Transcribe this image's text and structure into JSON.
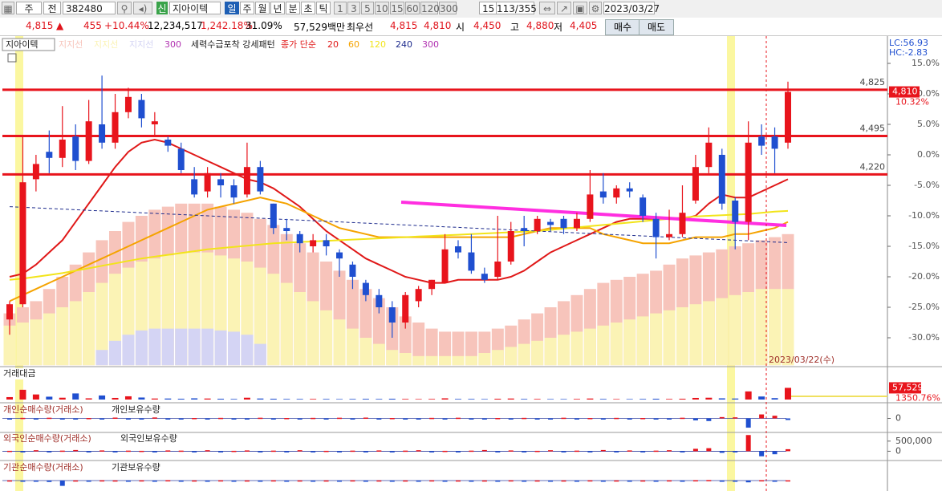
{
  "toolbar": {
    "market": "주",
    "range": "전",
    "code": "382480",
    "badge": "신",
    "name": "지아이텍",
    "periods": [
      "일",
      "주",
      "월",
      "년",
      "분",
      "초",
      "틱"
    ],
    "minutes": [
      "1",
      "3",
      "5",
      "10",
      "15",
      "60",
      "120",
      "300"
    ],
    "count": "15",
    "position": "113/355",
    "date": "2023/03/27"
  },
  "quote": {
    "price": "4,815",
    "arrow": "▲",
    "change": "455",
    "change_pct": "+10.44%",
    "volume": "12,234,517",
    "volume_ratio": "1,242.18%",
    "turnover": "31.09%",
    "amount": "57,529백만",
    "priority": "최우선",
    "ask": "4,815",
    "bid": "4,810",
    "open_label": "시",
    "open": "4,450",
    "high_label": "고",
    "high": "4,880",
    "low_label": "저",
    "low": "4,405",
    "buy": "매수",
    "sell": "매도"
  },
  "chart_data": [
    {
      "type": "candlestick",
      "stock_label": "지아이텍",
      "band_period": "300",
      "pattern_label": "세력수급포착 강세패턴",
      "ma_label": "종가 단순",
      "lc": "LC:56.93",
      "hc": "HC:-2.83",
      "date_note": "2023/03/22(수)",
      "ylim": [
        -34.5,
        18.5
      ],
      "yticks": [
        {
          "value": 15,
          "label": "15.0%"
        },
        {
          "value": 10,
          "label": "10.0%"
        },
        {
          "value": 5,
          "label": "5.0%"
        },
        {
          "value": 0,
          "label": "0.0%"
        },
        {
          "value": -5,
          "label": "-5.0%"
        },
        {
          "value": -10,
          "label": "-10.0%"
        },
        {
          "value": -15,
          "label": "-15.0%"
        },
        {
          "value": -20,
          "label": "-20.0%"
        },
        {
          "value": -25,
          "label": "-25.0%"
        },
        {
          "value": -30,
          "label": "-30.0%"
        }
      ],
      "hlines": [
        {
          "value": 10.67,
          "label": "4,825",
          "color": "#e8141c"
        },
        {
          "value": 3.1,
          "label": "4,495",
          "color": "#e8141c"
        },
        {
          "value": -3.21,
          "label": "4,220",
          "color": "#e8141c"
        }
      ],
      "current": {
        "value": 10.32,
        "label": "4,810",
        "pct_label": "10.32%"
      },
      "open": [
        -27,
        -24.5,
        -4,
        0.5,
        -0.5,
        3,
        -1,
        5,
        2,
        7,
        9,
        5,
        2.5,
        1,
        -4,
        -6,
        -4,
        -5,
        -6.5,
        -2,
        -8,
        -12,
        -13,
        -15,
        -14,
        -16,
        -18,
        -21,
        -23,
        -25,
        -27.5,
        -24,
        -22,
        -21,
        -15,
        -16,
        -19.5,
        -20,
        -17.5,
        -12,
        -12.5,
        -11,
        -10.5,
        -12,
        -10.5,
        -6,
        -7,
        -5.5,
        -7,
        -10.5,
        -13.5,
        -13,
        -7.5,
        -2,
        0,
        -7.5,
        -11,
        3,
        3,
        2
      ],
      "high": [
        -24,
        3,
        0,
        4,
        8,
        5,
        9,
        13,
        10,
        11,
        10,
        7,
        3,
        2,
        -2,
        -2,
        -3,
        -4,
        2,
        -1,
        -8,
        -10.5,
        -12.5,
        -13,
        -13,
        -15.5,
        -17.5,
        -20.5,
        -22,
        -24,
        -22.5,
        -21.5,
        -20.5,
        -13,
        -14,
        -13,
        -18.5,
        -10,
        -11,
        -10,
        -10,
        -10.5,
        -10,
        -9.5,
        -2.5,
        -3,
        -5,
        -4.5,
        -6.5,
        -9.5,
        -9,
        -5,
        0,
        4.5,
        1,
        -7,
        5.5,
        5,
        4.5,
        12
      ],
      "low": [
        -29.5,
        -25,
        -6,
        -3,
        -2,
        -2.5,
        -1.5,
        1,
        1,
        6,
        4.5,
        3,
        0.5,
        -3,
        -7,
        -7,
        -7,
        -8,
        -7,
        -6.5,
        -13,
        -14,
        -16,
        -16,
        -16.5,
        -20,
        -22,
        -24,
        -26,
        -30,
        -28.5,
        -25,
        -23,
        -21,
        -17,
        -19.5,
        -21,
        -20.5,
        -18,
        -15,
        -13,
        -12.5,
        -13,
        -12.5,
        -11,
        -8,
        -8,
        -7,
        -11,
        -17,
        -14,
        -13.5,
        -8,
        -3,
        -9,
        -15.5,
        -14,
        0,
        -3,
        1
      ],
      "close": [
        -24.5,
        -4.5,
        -1.5,
        -0.5,
        2.5,
        -1,
        5.5,
        2,
        7,
        9.5,
        6,
        5.5,
        1.5,
        -2.5,
        -6.5,
        -3,
        -5,
        -7,
        -2,
        -6,
        -12,
        -12.5,
        -14.5,
        -14,
        -15,
        -17,
        -20,
        -23,
        -25,
        -27.5,
        -23,
        -22,
        -20.5,
        -15.5,
        -16,
        -19,
        -20.5,
        -17.5,
        -12.5,
        -12.5,
        -10.5,
        -11.5,
        -12,
        -10.5,
        -6.5,
        -7,
        -5.5,
        -6,
        -10,
        -13.5,
        -13,
        -9.5,
        -2,
        2,
        -8,
        -11,
        2,
        1.5,
        1,
        10.32
      ],
      "up_color": "#e8141c",
      "down_color": "#1f4fd0",
      "bands": [
        {
          "name": "지지선",
          "color": "#f7c4bb",
          "values": [
            -26,
            -25,
            -24,
            -22,
            -20,
            -18,
            -16,
            -14,
            -12.5,
            -11,
            -10,
            -9,
            -8.5,
            -8,
            -8,
            -8,
            -8.5,
            -9,
            -9.5,
            -10.5,
            -11.5,
            -13,
            -14.5,
            -16,
            -17.5,
            -19,
            -20.5,
            -22,
            -23.5,
            -25,
            -26.5,
            -27.5,
            -28.5,
            -29,
            -29,
            -29,
            -29,
            -28.5,
            -28,
            -27,
            -26,
            -25,
            -24,
            -23,
            -22,
            -21,
            -20.5,
            -20,
            -19.5,
            -19,
            -18,
            -17,
            -16.5,
            -16,
            -15.5,
            -15,
            -14.5,
            -14,
            -13.5,
            -13
          ]
        },
        {
          "name": "지지선",
          "color": "#fbf3b5",
          "values": [
            -28,
            -27.5,
            -27,
            -26,
            -25,
            -24,
            -22.5,
            -21,
            -19.5,
            -18.5,
            -17.5,
            -17,
            -16.5,
            -16,
            -16,
            -16,
            -16.5,
            -17,
            -17.5,
            -18.5,
            -19.5,
            -21,
            -22.5,
            -24,
            -25.5,
            -27,
            -28.5,
            -30,
            -31,
            -32,
            -32.5,
            -33,
            -33,
            -33,
            -33,
            -33,
            -32.5,
            -32,
            -31.5,
            -31,
            -30.5,
            -30,
            -29.5,
            -29,
            -28.5,
            -28,
            -27.5,
            -27,
            -26.5,
            -26,
            -25.5,
            -25,
            -24.5,
            -24,
            -23.5,
            -23,
            -22.5,
            -22,
            -22,
            -22
          ]
        },
        {
          "name": "지지선",
          "color": "#d4d4f4",
          "values": [
            null,
            null,
            null,
            null,
            null,
            null,
            null,
            -32,
            -30.5,
            -29.5,
            -28.8,
            -28.5,
            -28.5,
            -28.5,
            -28.5,
            -28.5,
            -28.8,
            -29,
            -29.5,
            -31,
            null,
            null,
            null,
            null,
            null,
            null,
            null,
            null,
            null,
            null,
            null,
            null,
            null,
            null,
            null,
            null,
            null,
            null,
            null,
            null,
            null,
            null,
            null,
            null,
            null,
            null,
            null,
            null,
            null,
            null,
            null,
            null,
            null,
            null,
            null,
            null,
            null,
            null,
            null,
            null
          ]
        }
      ],
      "series": [
        {
          "name": "20",
          "color": "#e01818",
          "values": [
            -20,
            -19.5,
            -18,
            -16,
            -14,
            -11,
            -8,
            -5,
            -2,
            0.5,
            2,
            2.5,
            2,
            1,
            0,
            -1,
            -2,
            -3,
            -4,
            -4.5,
            -5.5,
            -7,
            -8.5,
            -10.5,
            -12.5,
            -14,
            -15.5,
            -17,
            -18,
            -19,
            -20,
            -20.5,
            -21,
            -21,
            -20.5,
            -20.5,
            -20.5,
            -20.5,
            -20,
            -19,
            -17.5,
            -16,
            -15,
            -14,
            -13,
            -12,
            -11,
            -10.5,
            -10.5,
            -10.5,
            -10.5,
            -10.5,
            -10,
            -8,
            -6.5,
            -7,
            -7,
            -6,
            -5,
            -4
          ]
        },
        {
          "name": "60",
          "color": "#f5a300",
          "values": [
            -24,
            -23,
            -22,
            -21,
            -20,
            -19,
            -18,
            -17,
            -16,
            -15,
            -14,
            -13,
            -12,
            -11,
            -10,
            -9,
            -8.5,
            -8,
            -7.5,
            -7,
            -7.5,
            -8,
            -9,
            -10,
            -11,
            -12,
            -12.5,
            -13,
            -13.5,
            -13.5,
            -13.5,
            -13.5,
            -13.5,
            -13.5,
            -13.5,
            -13.5,
            -13.5,
            -13.5,
            -13.5,
            -13,
            -12.5,
            -12,
            -12,
            -12,
            -12,
            -13,
            -13.5,
            -14,
            -14.5,
            -14.5,
            -14.5,
            -14,
            -13.5,
            -13.5,
            -13.5,
            -13,
            -13,
            -12.5,
            -12,
            -11
          ]
        },
        {
          "name": "120",
          "color": "#f2e41a",
          "values": [
            -20.5,
            -20.3,
            -20,
            -19.7,
            -19.4,
            -19,
            -18.6,
            -18.2,
            -17.8,
            -17.4,
            -17,
            -16.7,
            -16.4,
            -16.1,
            -15.8,
            -15.5,
            -15.3,
            -15.1,
            -14.9,
            -14.7,
            -14.5,
            -14.4,
            -14.3,
            -14.2,
            -14.1,
            -14,
            -13.9,
            -13.8,
            -13.7,
            -13.6,
            -13.5,
            -13.4,
            -13.3,
            -13.2,
            -13.1,
            -13,
            -12.9,
            -12.8,
            -12.7,
            -12.6,
            -12.5,
            -12.3,
            -12.1,
            -11.9,
            -11.7,
            -11.5,
            -11.3,
            -11.1,
            -10.9,
            -10.7,
            -10.5,
            -10.3,
            -10.1,
            -10,
            -9.9,
            -9.8,
            -9.7,
            -9.5,
            -9.3,
            -9.2
          ]
        },
        {
          "name": "240",
          "color": "#1c2a8c",
          "dashed": true,
          "values": [
            -8.5,
            -8.6,
            -8.7,
            -8.8,
            -8.9,
            -9,
            -9.1,
            -9.2,
            -9.3,
            -9.4,
            -9.5,
            -9.6,
            -9.7,
            -9.8,
            -9.9,
            -10,
            -10.1,
            -10.2,
            -10.3,
            -10.4,
            -10.5,
            -10.6,
            -10.7,
            -10.8,
            -10.9,
            -11,
            -11.1,
            -11.2,
            -11.3,
            -11.4,
            -11.5,
            -11.6,
            -11.7,
            -11.8,
            -11.9,
            -12,
            -12.1,
            -12.2,
            -12.3,
            -12.4,
            -12.5,
            -12.6,
            -12.7,
            -12.8,
            -12.9,
            -13,
            -13.1,
            -13.2,
            -13.3,
            -13.4,
            -13.5,
            -13.6,
            -13.7,
            -13.8,
            -13.9,
            -14,
            -14.1,
            -14.2,
            -14.3,
            -14.4
          ]
        },
        {
          "name": "300",
          "color": "#b030b0",
          "values": [
            null,
            null,
            null,
            null,
            null,
            null,
            null,
            null,
            null,
            null,
            null,
            null,
            null,
            null,
            null,
            null,
            null,
            null,
            null,
            null,
            null,
            null,
            null,
            null,
            null,
            null,
            null,
            null,
            null,
            null,
            null,
            null,
            null,
            null,
            null,
            null,
            null,
            null,
            null,
            null,
            null,
            null,
            null,
            null,
            null,
            null,
            null,
            null,
            null,
            null,
            null,
            null,
            null,
            null,
            null,
            null,
            null,
            null,
            null,
            null
          ]
        }
      ]
    },
    {
      "type": "volume",
      "title": "거래대금",
      "ylim": [
        0,
        150000
      ],
      "right_labels": [
        "57,529",
        "1350.76%"
      ],
      "values": [
        12000,
        48000,
        25000,
        14000,
        9000,
        30000,
        6000,
        20000,
        8000,
        16000,
        10000,
        5000,
        5000,
        4000,
        6000,
        5000,
        4000,
        3000,
        9000,
        5000,
        4000,
        3000,
        3000,
        3000,
        3000,
        2500,
        3000,
        3500,
        3000,
        4000,
        3000,
        2500,
        3000,
        6000,
        3000,
        3000,
        2500,
        4000,
        5000,
        3000,
        3000,
        2500,
        2500,
        3000,
        5000,
        3000,
        2500,
        2500,
        3000,
        4000,
        3000,
        4000,
        8000,
        9000,
        6000,
        5000,
        40000,
        15000,
        7000,
        57529
      ]
    },
    {
      "type": "flow",
      "title": "개인순매수량(거래소)",
      "title2": "개인보유수량",
      "ylim": [
        -1000000,
        1000000
      ],
      "yticks": [
        0
      ],
      "values": [
        -30000,
        40000,
        -60000,
        50000,
        -20000,
        -70000,
        30000,
        -50000,
        60000,
        -40000,
        -30000,
        70000,
        -50000,
        -40000,
        30000,
        -60000,
        40000,
        -30000,
        -50000,
        50000,
        -40000,
        30000,
        -60000,
        40000,
        -30000,
        50000,
        -40000,
        60000,
        -50000,
        30000,
        -40000,
        -60000,
        40000,
        -30000,
        50000,
        -40000,
        -70000,
        30000,
        -50000,
        40000,
        -30000,
        -60000,
        50000,
        -40000,
        30000,
        -70000,
        40000,
        -50000,
        30000,
        -40000,
        -60000,
        50000,
        -150000,
        -200000,
        100000,
        80000,
        -700000,
        300000,
        200000,
        -120000
      ]
    },
    {
      "type": "flow",
      "title": "외국인순매수량(거래소)",
      "title2": "외국인보유수량",
      "ylim": [
        -420000,
        850000
      ],
      "yticks": [
        {
          "value": 500000,
          "label": "500,000"
        },
        0
      ],
      "values": [
        20000,
        -30000,
        50000,
        -40000,
        30000,
        60000,
        -20000,
        40000,
        -50000,
        30000,
        20000,
        -60000,
        40000,
        30000,
        -20000,
        50000,
        -30000,
        20000,
        40000,
        -40000,
        30000,
        -20000,
        50000,
        -30000,
        20000,
        -40000,
        30000,
        -50000,
        40000,
        -20000,
        30000,
        50000,
        -30000,
        20000,
        -40000,
        30000,
        60000,
        -20000,
        40000,
        -30000,
        20000,
        50000,
        -40000,
        30000,
        -20000,
        60000,
        -30000,
        40000,
        -20000,
        30000,
        50000,
        -40000,
        120000,
        150000,
        -80000,
        -60000,
        800000,
        -250000,
        -150000,
        100000
      ]
    },
    {
      "type": "flow",
      "title": "기관순매수량(거래소)",
      "title2": "기관보유수량",
      "ylim": [
        -500000,
        1000000
      ],
      "yticks": [],
      "values": [
        10000,
        -20000,
        -60000,
        -80000,
        -300000,
        10000,
        -20000,
        15000,
        10000,
        -10000,
        15000,
        -10000,
        20000,
        -15000,
        10000,
        -10000,
        15000,
        -20000,
        10000,
        -10000,
        15000,
        -10000,
        10000,
        -15000,
        10000,
        -10000,
        15000,
        -10000,
        10000,
        -15000,
        10000,
        -10000,
        15000,
        -10000,
        10000,
        -15000,
        10000,
        -10000,
        15000,
        -10000,
        10000,
        -15000,
        10000,
        -10000,
        15000,
        -10000,
        10000,
        -15000,
        10000,
        -10000,
        15000,
        -10000,
        20000,
        30000,
        -20000,
        -15000,
        -100000,
        20000,
        -30000,
        15000
      ]
    }
  ]
}
